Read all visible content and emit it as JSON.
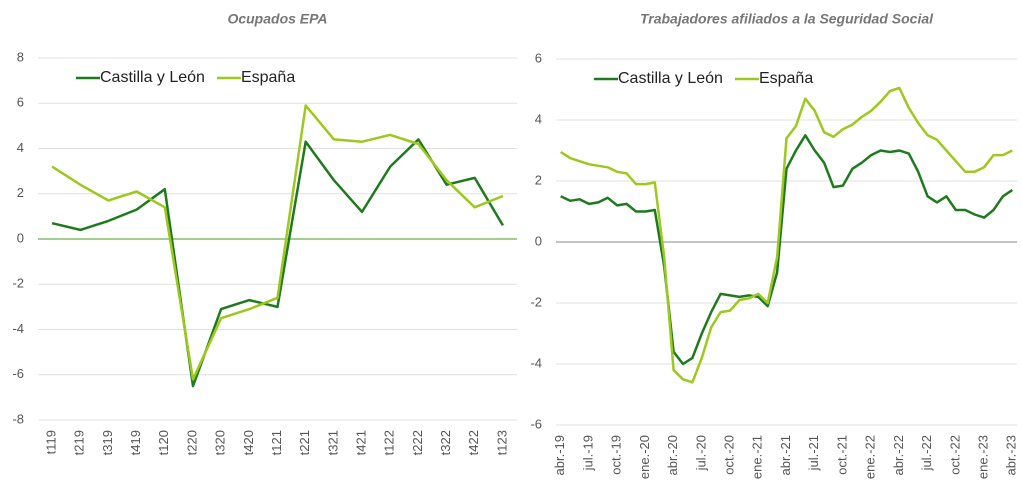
{
  "chart_data": [
    {
      "type": "line",
      "title": "Ocupados EPA",
      "categories": [
        "t119",
        "t219",
        "t319",
        "t419",
        "t120",
        "t220",
        "t320",
        "t420",
        "t121",
        "t221",
        "t321",
        "t421",
        "t122",
        "t222",
        "t322",
        "t422",
        "t123"
      ],
      "series": [
        {
          "name": "Castilla y León",
          "color": "#1f7a1f",
          "values": [
            0.7,
            0.4,
            0.8,
            1.3,
            2.2,
            -6.5,
            -3.1,
            -2.7,
            -3.0,
            4.3,
            2.6,
            1.2,
            3.2,
            4.4,
            2.4,
            2.7,
            0.6
          ]
        },
        {
          "name": "España",
          "color": "#9dc81e",
          "values": [
            3.2,
            2.4,
            1.7,
            2.1,
            1.4,
            -6.2,
            -3.5,
            -3.1,
            -2.6,
            5.9,
            4.4,
            4.3,
            4.6,
            4.2,
            2.6,
            1.4,
            1.9
          ]
        }
      ],
      "ylim": [
        -8,
        8
      ],
      "yticks": [
        -8,
        -6,
        -4,
        -2,
        0,
        2,
        4,
        6,
        8
      ],
      "grid": true,
      "legend": "top-left",
      "zero_line_color": "#6ab04c"
    },
    {
      "type": "line",
      "title": "Trabajadores afiliados a la Seguridad Social",
      "categories": [
        "abr.-19",
        null,
        null,
        "jul.-19",
        null,
        null,
        "oct.-19",
        null,
        null,
        "ene.-20",
        null,
        null,
        "abr.-20",
        null,
        null,
        "jul.-20",
        null,
        null,
        "oct.-20",
        null,
        null,
        "ene.-21",
        null,
        null,
        "abr.-21",
        null,
        null,
        "jul.-21",
        null,
        null,
        "oct.-21",
        null,
        null,
        "ene.-22",
        null,
        null,
        "abr.-22",
        null,
        null,
        "jul.-22",
        null,
        null,
        "oct.-22",
        null,
        null,
        "ene.-23",
        null,
        null,
        "abr.-23"
      ],
      "series": [
        {
          "name": "Castilla y León",
          "color": "#1f7a1f",
          "values": [
            1.5,
            1.35,
            1.4,
            1.25,
            1.3,
            1.45,
            1.2,
            1.25,
            1.0,
            1.0,
            1.05,
            -0.8,
            -3.6,
            -4.0,
            -3.8,
            -3.0,
            -2.3,
            -1.7,
            -1.75,
            -1.8,
            -1.75,
            -1.8,
            -2.1,
            -1.0,
            2.4,
            3.0,
            3.5,
            3.0,
            2.6,
            1.8,
            1.85,
            2.4,
            2.6,
            2.85,
            3.0,
            2.95,
            3.0,
            2.9,
            2.3,
            1.5,
            1.3,
            1.5,
            1.05,
            1.05,
            0.9,
            0.8,
            1.05,
            1.5,
            1.7
          ]
        },
        {
          "name": "España",
          "color": "#9dc81e",
          "values": [
            2.95,
            2.75,
            2.65,
            2.55,
            2.5,
            2.45,
            2.3,
            2.25,
            1.9,
            1.9,
            1.95,
            -0.5,
            -4.2,
            -4.5,
            -4.6,
            -3.8,
            -2.8,
            -2.3,
            -2.25,
            -1.9,
            -1.85,
            -1.7,
            -2.0,
            -0.5,
            3.4,
            3.8,
            4.7,
            4.3,
            3.6,
            3.45,
            3.7,
            3.85,
            4.1,
            4.3,
            4.6,
            4.95,
            5.05,
            4.4,
            3.9,
            3.5,
            3.35,
            3.0,
            2.65,
            2.3,
            2.3,
            2.45,
            2.85,
            2.85,
            3.0
          ]
        }
      ],
      "ylim": [
        -6,
        6
      ],
      "yticks": [
        -6,
        -4,
        -2,
        0,
        2,
        4,
        6
      ],
      "grid": true,
      "legend": "top-left",
      "zero_line_color": "#a0a0a0"
    }
  ]
}
